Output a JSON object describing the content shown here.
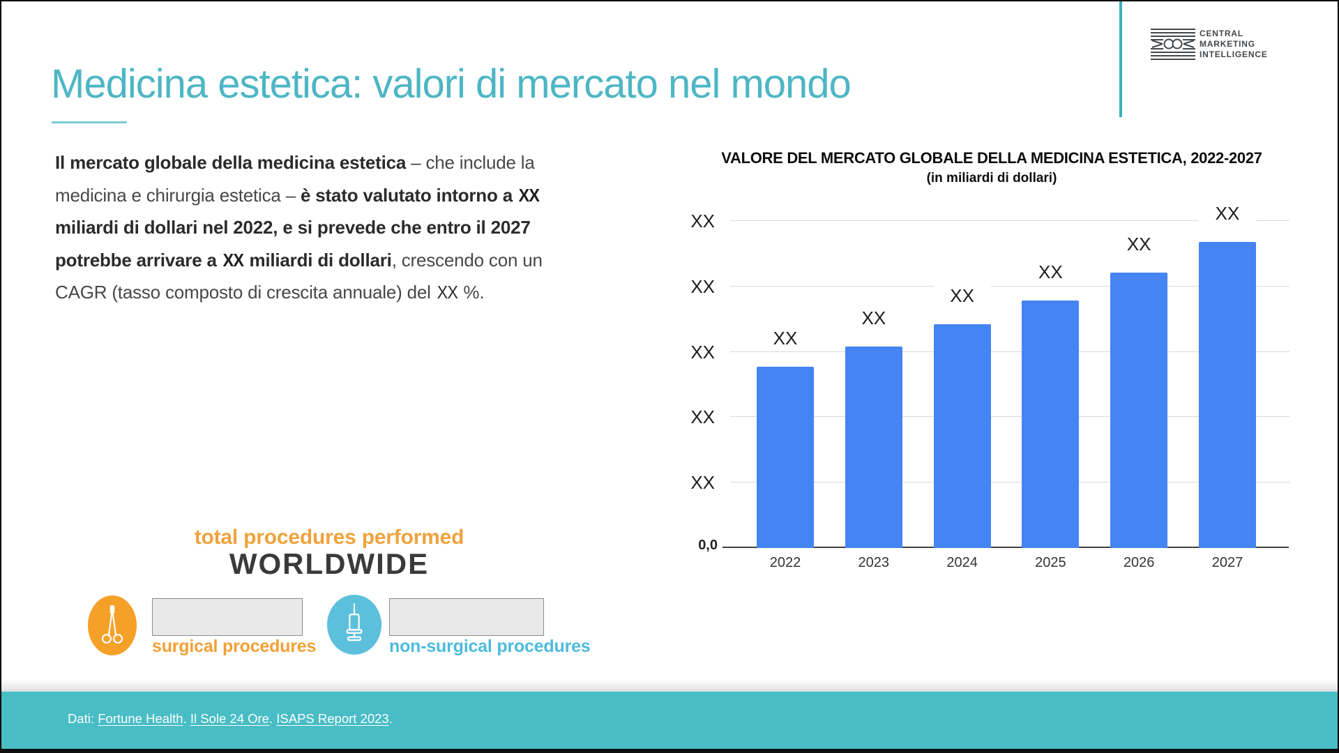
{
  "slide": {
    "title": "Medicina estetica: valori di mercato nel mondo"
  },
  "logo": {
    "line1": "CENTRAL",
    "line2": "MARKETING",
    "line3": "INTELLIGENCE"
  },
  "intro": {
    "line1_bold": "Il mercato globale della medicina estetica",
    "line1_regular": " – che include la",
    "line2_regular": "medicina e chirurgia estetica – ",
    "line2_bold": "è stato valutato intorno a",
    "line2_xx": "XX",
    "line3_bold": "miliardi di dollari nel 2022, e si prevede che entro il 2027",
    "line4_bold1": "potrebbe arrivare a",
    "line4_xx": "XX",
    "line4_bold2": "miliardi di dollari",
    "line4_regular": ", crescendo con un",
    "line5_regular1": "CAGR (tasso composto di crescita annuale) del ",
    "line5_xx": "XX",
    "line5_regular2": " %."
  },
  "chart_data": {
    "type": "bar",
    "title": "VALORE DEL MERCATO GLOBALE DELLA MEDICINA ESTETICA, 2022-2027",
    "subtitle": "(in miliardi di dollari)",
    "categories": [
      "2022",
      "2023",
      "2024",
      "2025",
      "2026",
      "2027"
    ],
    "value_labels": [
      "XX",
      "XX",
      "XX",
      "XX",
      "XX",
      "XX"
    ],
    "values_pct_of_axis_max": [
      55.4,
      61.6,
      68.4,
      75.7,
      84.2,
      93.6
    ],
    "y_tick_labels_bottom_to_top": [
      "0,0",
      "XX",
      "XX",
      "XX",
      "XX",
      "XX"
    ],
    "bar_color": "#4484f3",
    "grid": true,
    "legend": false,
    "note": "values are placeholders (XX); bar heights estimated as % of top gridline"
  },
  "procedures": {
    "heading_small": "total procedures performed",
    "heading_big": "WORLDWIDE",
    "items": [
      {
        "label": "surgical procedures",
        "icon": "scissors",
        "color": "#f5a028"
      },
      {
        "label": "non-surgical procedures",
        "icon": "syringe",
        "color": "#5cc0dd"
      }
    ]
  },
  "footer": {
    "prefix": "Dati: ",
    "link1": "Fortune Health",
    "sep1": ". ",
    "link2": "Il Sole 24 Ore",
    "sep2": ".  ",
    "link3": "ISAPS Report 2023",
    "end": "."
  }
}
